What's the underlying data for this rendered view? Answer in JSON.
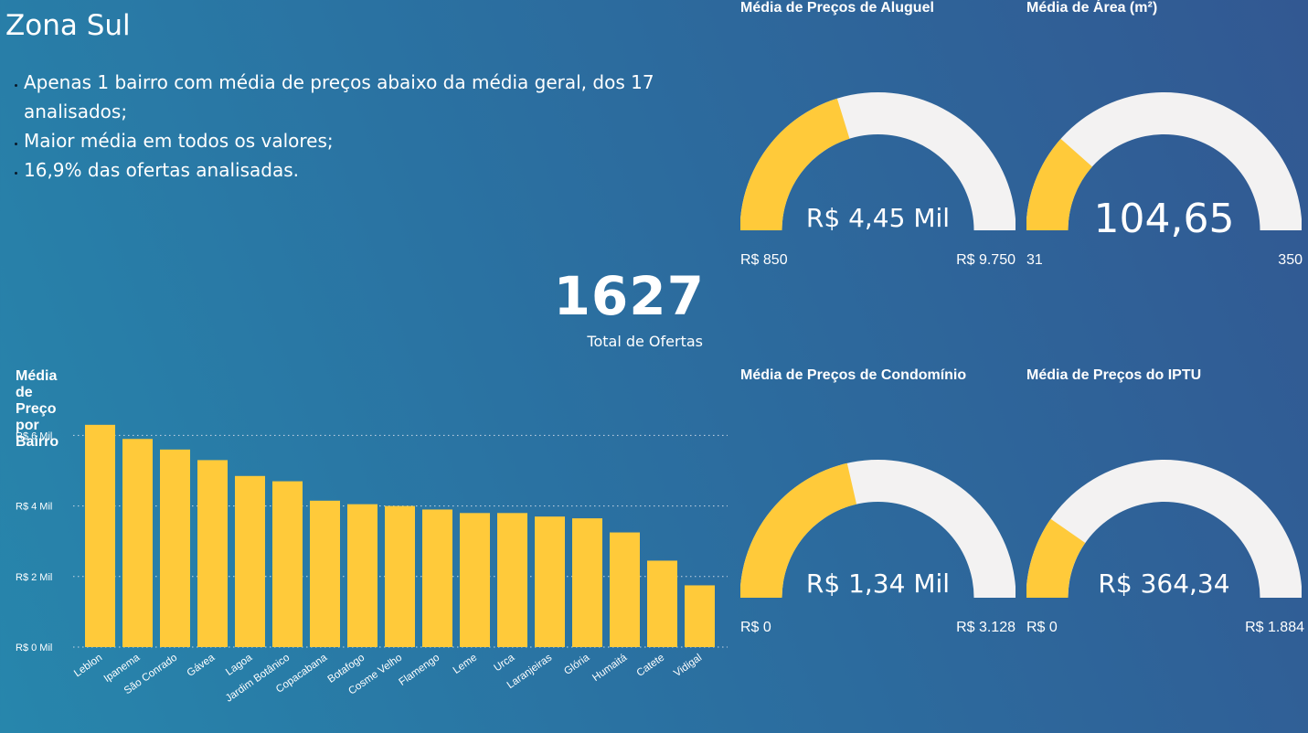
{
  "page": {
    "title": "Zona Sul",
    "bullets": [
      "Apenas 1 bairro com média de preços abaixo da média geral, dos 17 analisados;",
      "Maior média em todos os valores;",
      "16,9% das ofertas analisadas."
    ]
  },
  "kpi": {
    "value": "1627",
    "label": "Total de Ofertas"
  },
  "gauges": {
    "aluguel": {
      "title": "Média de Preços de Aluguel",
      "value_label": "R$ 4,45 Mil",
      "value": 4450,
      "min": 850,
      "max": 9750,
      "min_label": "R$ 850",
      "max_label": "R$ 9.750"
    },
    "area": {
      "title": "Média de Área (m²)",
      "value_label": "104,65",
      "value": 104.65,
      "min": 31,
      "max": 350,
      "min_label": "31",
      "max_label": "350"
    },
    "condominio": {
      "title": "Média de Preços de Condomínio",
      "value_label": "R$ 1,34 Mil",
      "value": 1340,
      "min": 0,
      "max": 3128,
      "min_label": "R$ 0",
      "max_label": "R$ 3.128"
    },
    "iptu": {
      "title": "Média de Preços do IPTU",
      "value_label": "R$ 364,34",
      "value": 364.34,
      "min": 0,
      "max": 1884,
      "min_label": "R$ 0",
      "max_label": "R$ 1.884"
    }
  },
  "colors": {
    "fill": "#ffca3a",
    "track": "#f3f2f2"
  },
  "chart_data": {
    "type": "bar",
    "title": "Média de Preço por Bairro",
    "categories": [
      "Leblon",
      "Ipanema",
      "São Conrado",
      "Gávea",
      "Lagoa",
      "Jardim Botânico",
      "Copacabana",
      "Botafogo",
      "Cosme Velho",
      "Flamengo",
      "Leme",
      "Urca",
      "Laranjeiras",
      "Glória",
      "Humaitá",
      "Catete",
      "Vidigal"
    ],
    "values": [
      6.3,
      5.9,
      5.6,
      5.3,
      4.85,
      4.7,
      4.15,
      4.05,
      4.0,
      3.9,
      3.8,
      3.8,
      3.7,
      3.65,
      3.25,
      2.45,
      1.75
    ],
    "y_ticks": [
      0,
      2,
      4,
      6
    ],
    "y_tick_labels": [
      "R$ 0 Mil",
      "R$ 2 Mil",
      "R$ 4 Mil",
      "R$ 6 Mil"
    ],
    "ylim": [
      0,
      6.5
    ],
    "grid": true,
    "color": "#ffca3a"
  }
}
